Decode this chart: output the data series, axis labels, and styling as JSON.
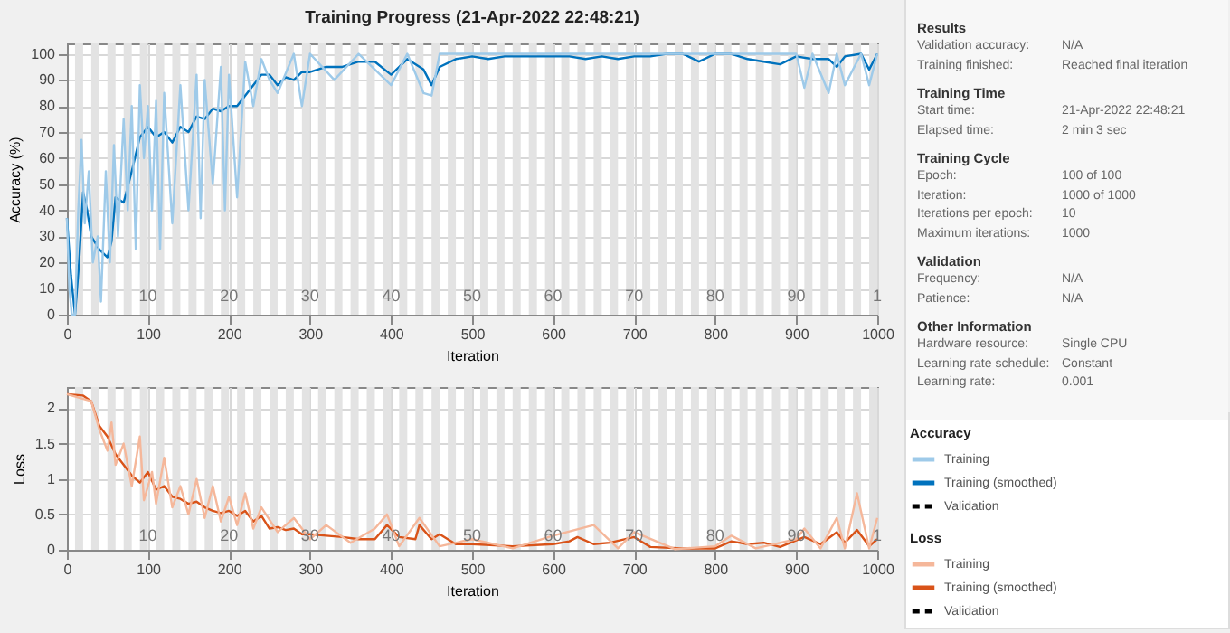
{
  "chart_data": [
    {
      "type": "line",
      "title": "Training Progress (21-Apr-2022 22:48:21)",
      "xlabel": "Iteration",
      "ylabel": "Accuracy (%)",
      "legend_title": "Accuracy",
      "legend": "right",
      "grid": true,
      "xlim": [
        0,
        1000
      ],
      "xticks": [
        0,
        100,
        200,
        300,
        400,
        500,
        600,
        700,
        800,
        900,
        1000
      ],
      "ylim": [
        0,
        104
      ],
      "yticks": [
        0,
        10,
        20,
        30,
        40,
        50,
        60,
        70,
        80,
        90,
        100
      ],
      "series": [
        {
          "name": "Training",
          "color": "#9ecae9",
          "x": [
            0,
            3,
            6,
            10,
            14,
            18,
            22,
            27,
            32,
            38,
            42,
            48,
            53,
            58,
            63,
            70,
            75,
            80,
            85,
            90,
            95,
            100,
            105,
            110,
            115,
            120,
            130,
            140,
            150,
            160,
            165,
            170,
            180,
            190,
            195,
            200,
            210,
            220,
            230,
            240,
            250,
            260,
            280,
            290,
            300,
            330,
            360,
            400,
            420,
            440,
            450,
            460,
            500,
            600,
            700,
            800,
            900,
            910,
            920,
            940,
            950,
            960,
            980,
            990,
            1000
          ],
          "values": [
            37,
            10,
            0,
            0,
            40,
            67,
            35,
            55,
            20,
            30,
            5,
            55,
            20,
            65,
            30,
            75,
            40,
            80,
            25,
            88,
            60,
            80,
            40,
            82,
            25,
            85,
            35,
            88,
            40,
            92,
            37,
            90,
            50,
            95,
            40,
            92,
            45,
            97,
            80,
            98,
            90,
            85,
            100,
            80,
            100,
            90,
            100,
            88,
            100,
            85,
            84,
            100,
            100,
            100,
            100,
            100,
            100,
            87,
            100,
            85,
            100,
            88,
            100,
            88,
            100
          ]
        },
        {
          "name": "Training (smoothed)",
          "color": "#0072bd",
          "x": [
            0,
            5,
            10,
            15,
            20,
            25,
            30,
            40,
            50,
            55,
            60,
            70,
            80,
            90,
            100,
            110,
            120,
            130,
            140,
            150,
            160,
            170,
            180,
            190,
            200,
            210,
            220,
            230,
            240,
            250,
            260,
            270,
            280,
            290,
            300,
            320,
            340,
            360,
            380,
            400,
            420,
            440,
            450,
            460,
            480,
            500,
            520,
            540,
            560,
            580,
            600,
            620,
            640,
            660,
            680,
            700,
            720,
            740,
            760,
            780,
            800,
            820,
            840,
            860,
            880,
            900,
            920,
            940,
            950,
            960,
            980,
            990,
            1000
          ],
          "values": [
            37,
            15,
            0,
            20,
            47,
            40,
            30,
            25,
            22,
            28,
            45,
            43,
            55,
            68,
            72,
            68,
            70,
            66,
            72,
            70,
            76,
            75,
            79,
            78,
            80,
            80,
            84,
            88,
            92,
            92,
            88,
            91,
            90,
            93,
            93,
            95,
            95,
            97,
            97,
            92,
            98,
            94,
            88,
            95,
            98,
            99,
            98,
            99,
            99,
            99,
            99,
            99,
            98,
            99,
            98,
            99,
            99,
            100,
            100,
            97,
            100,
            100,
            98,
            97,
            96,
            99,
            98,
            98,
            95,
            99,
            100,
            94,
            100
          ]
        },
        {
          "name": "Validation",
          "color": "#000000",
          "line_style": "dashed"
        }
      ],
      "bands": [
        {
          "axis": "x",
          "from": 10,
          "to": 20
        },
        {
          "axis": "x",
          "from": 30,
          "to": 40
        },
        {
          "axis": "x",
          "from": 50,
          "to": 60
        },
        {
          "axis": "x",
          "from": 70,
          "to": 80
        },
        {
          "axis": "x",
          "from": 90,
          "to": 100
        },
        {
          "axis": "x",
          "from": 110,
          "to": 120
        },
        {
          "axis": "x",
          "from": 130,
          "to": 140
        },
        {
          "axis": "x",
          "from": 150,
          "to": 160
        },
        {
          "axis": "x",
          "from": 170,
          "to": 180
        },
        {
          "axis": "x",
          "from": 190,
          "to": 200
        },
        {
          "axis": "x",
          "from": 210,
          "to": 220
        },
        {
          "axis": "x",
          "from": 230,
          "to": 240
        },
        {
          "axis": "x",
          "from": 250,
          "to": 260
        },
        {
          "axis": "x",
          "from": 270,
          "to": 280
        },
        {
          "axis": "x",
          "from": 290,
          "to": 300
        },
        {
          "axis": "x",
          "from": 310,
          "to": 320
        },
        {
          "axis": "x",
          "from": 330,
          "to": 340
        },
        {
          "axis": "x",
          "from": 350,
          "to": 360
        },
        {
          "axis": "x",
          "from": 370,
          "to": 380
        },
        {
          "axis": "x",
          "from": 390,
          "to": 400
        },
        {
          "axis": "x",
          "from": 410,
          "to": 420
        },
        {
          "axis": "x",
          "from": 430,
          "to": 440
        },
        {
          "axis": "x",
          "from": 450,
          "to": 460
        },
        {
          "axis": "x",
          "from": 470,
          "to": 480
        },
        {
          "axis": "x",
          "from": 490,
          "to": 500
        },
        {
          "axis": "x",
          "from": 510,
          "to": 520
        },
        {
          "axis": "x",
          "from": 530,
          "to": 540
        },
        {
          "axis": "x",
          "from": 550,
          "to": 560
        },
        {
          "axis": "x",
          "from": 570,
          "to": 580
        },
        {
          "axis": "x",
          "from": 590,
          "to": 600
        },
        {
          "axis": "x",
          "from": 610,
          "to": 620
        },
        {
          "axis": "x",
          "from": 630,
          "to": 640
        },
        {
          "axis": "x",
          "from": 650,
          "to": 660
        },
        {
          "axis": "x",
          "from": 670,
          "to": 680
        },
        {
          "axis": "x",
          "from": 690,
          "to": 700
        },
        {
          "axis": "x",
          "from": 710,
          "to": 720
        },
        {
          "axis": "x",
          "from": 730,
          "to": 740
        },
        {
          "axis": "x",
          "from": 750,
          "to": 760
        },
        {
          "axis": "x",
          "from": 770,
          "to": 780
        },
        {
          "axis": "x",
          "from": 790,
          "to": 800
        },
        {
          "axis": "x",
          "from": 810,
          "to": 820
        },
        {
          "axis": "x",
          "from": 830,
          "to": 840
        },
        {
          "axis": "x",
          "from": 850,
          "to": 860
        },
        {
          "axis": "x",
          "from": 870,
          "to": 880
        },
        {
          "axis": "x",
          "from": 890,
          "to": 900
        },
        {
          "axis": "x",
          "from": 910,
          "to": 920
        },
        {
          "axis": "x",
          "from": 930,
          "to": 940
        },
        {
          "axis": "x",
          "from": 950,
          "to": 960
        },
        {
          "axis": "x",
          "from": 970,
          "to": 980
        },
        {
          "axis": "x",
          "from": 990,
          "to": 1000
        }
      ],
      "annotations": [
        {
          "text": "10",
          "x": 100,
          "y": 6
        },
        {
          "text": "20",
          "x": 200,
          "y": 6
        },
        {
          "text": "30",
          "x": 300,
          "y": 6
        },
        {
          "text": "40",
          "x": 400,
          "y": 6
        },
        {
          "text": "50",
          "x": 500,
          "y": 6
        },
        {
          "text": "60",
          "x": 600,
          "y": 6
        },
        {
          "text": "70",
          "x": 700,
          "y": 6
        },
        {
          "text": "80",
          "x": 800,
          "y": 6
        },
        {
          "text": "90",
          "x": 900,
          "y": 6
        },
        {
          "text": "1",
          "x": 1000,
          "y": 6
        }
      ]
    },
    {
      "type": "line",
      "xlabel": "Iteration",
      "ylabel": "Loss",
      "legend_title": "Loss",
      "legend": "right",
      "grid": true,
      "xlim": [
        0,
        1000
      ],
      "xticks": [
        0,
        100,
        200,
        300,
        400,
        500,
        600,
        700,
        800,
        900,
        1000
      ],
      "ylim": [
        0,
        2.3
      ],
      "yticks": [
        0,
        0.5,
        1,
        1.5,
        2
      ],
      "series": [
        {
          "name": "Training",
          "color": "#f5b79a",
          "x": [
            0,
            30,
            40,
            50,
            55,
            60,
            70,
            80,
            90,
            95,
            105,
            110,
            120,
            130,
            140,
            150,
            160,
            170,
            180,
            190,
            200,
            210,
            220,
            230,
            240,
            260,
            280,
            300,
            320,
            350,
            380,
            395,
            410,
            435,
            460,
            500,
            550,
            600,
            650,
            680,
            700,
            750,
            800,
            820,
            850,
            900,
            910,
            930,
            950,
            960,
            975,
            990,
            1000
          ],
          "values": [
            2.2,
            2.1,
            1.7,
            1.4,
            1.8,
            1.2,
            1.5,
            0.9,
            1.6,
            0.7,
            1.1,
            0.65,
            1.3,
            0.6,
            0.9,
            0.5,
            1.0,
            0.45,
            0.9,
            0.4,
            0.75,
            0.35,
            0.8,
            0.3,
            0.6,
            0.25,
            0.45,
            0.15,
            0.35,
            0.1,
            0.3,
            0.5,
            0.05,
            0.45,
            0.05,
            0.15,
            0.02,
            0.2,
            0.35,
            0.02,
            0.25,
            0.01,
            0.05,
            0.2,
            0.02,
            0.15,
            0.3,
            0.02,
            0.45,
            0.02,
            0.8,
            0.02,
            0.45
          ]
        },
        {
          "name": "Training (smoothed)",
          "color": "#d95319",
          "x": [
            0,
            20,
            30,
            40,
            50,
            60,
            70,
            80,
            90,
            100,
            110,
            120,
            130,
            140,
            150,
            160,
            170,
            180,
            190,
            200,
            210,
            220,
            230,
            240,
            250,
            260,
            270,
            280,
            290,
            300,
            320,
            340,
            360,
            380,
            395,
            410,
            430,
            435,
            450,
            460,
            480,
            500,
            550,
            600,
            620,
            630,
            650,
            670,
            700,
            720,
            760,
            800,
            820,
            840,
            860,
            880,
            910,
            930,
            950,
            960,
            975,
            990,
            1000
          ],
          "values": [
            2.2,
            2.18,
            2.1,
            1.75,
            1.6,
            1.35,
            1.2,
            1.05,
            0.95,
            1.1,
            0.85,
            0.9,
            0.75,
            0.72,
            0.65,
            0.68,
            0.6,
            0.55,
            0.52,
            0.55,
            0.48,
            0.55,
            0.4,
            0.48,
            0.3,
            0.32,
            0.28,
            0.3,
            0.22,
            0.22,
            0.2,
            0.18,
            0.15,
            0.15,
            0.35,
            0.18,
            0.15,
            0.35,
            0.15,
            0.22,
            0.08,
            0.08,
            0.05,
            0.08,
            0.12,
            0.18,
            0.08,
            0.1,
            0.18,
            0.04,
            0.02,
            0.02,
            0.12,
            0.08,
            0.1,
            0.04,
            0.18,
            0.08,
            0.25,
            0.1,
            0.28,
            0.05,
            0.15
          ]
        },
        {
          "name": "Validation",
          "color": "#000000",
          "line_style": "dashed"
        }
      ],
      "bands": [
        {
          "axis": "x",
          "from": 10,
          "to": 20
        },
        {
          "axis": "x",
          "from": 30,
          "to": 40
        },
        {
          "axis": "x",
          "from": 50,
          "to": 60
        },
        {
          "axis": "x",
          "from": 70,
          "to": 80
        },
        {
          "axis": "x",
          "from": 90,
          "to": 100
        },
        {
          "axis": "x",
          "from": 110,
          "to": 120
        },
        {
          "axis": "x",
          "from": 130,
          "to": 140
        },
        {
          "axis": "x",
          "from": 150,
          "to": 160
        },
        {
          "axis": "x",
          "from": 170,
          "to": 180
        },
        {
          "axis": "x",
          "from": 190,
          "to": 200
        },
        {
          "axis": "x",
          "from": 210,
          "to": 220
        },
        {
          "axis": "x",
          "from": 230,
          "to": 240
        },
        {
          "axis": "x",
          "from": 250,
          "to": 260
        },
        {
          "axis": "x",
          "from": 270,
          "to": 280
        },
        {
          "axis": "x",
          "from": 290,
          "to": 300
        },
        {
          "axis": "x",
          "from": 310,
          "to": 320
        },
        {
          "axis": "x",
          "from": 330,
          "to": 340
        },
        {
          "axis": "x",
          "from": 350,
          "to": 360
        },
        {
          "axis": "x",
          "from": 370,
          "to": 380
        },
        {
          "axis": "x",
          "from": 390,
          "to": 400
        },
        {
          "axis": "x",
          "from": 410,
          "to": 420
        },
        {
          "axis": "x",
          "from": 430,
          "to": 440
        },
        {
          "axis": "x",
          "from": 450,
          "to": 460
        },
        {
          "axis": "x",
          "from": 470,
          "to": 480
        },
        {
          "axis": "x",
          "from": 490,
          "to": 500
        },
        {
          "axis": "x",
          "from": 510,
          "to": 520
        },
        {
          "axis": "x",
          "from": 530,
          "to": 540
        },
        {
          "axis": "x",
          "from": 550,
          "to": 560
        },
        {
          "axis": "x",
          "from": 570,
          "to": 580
        },
        {
          "axis": "x",
          "from": 590,
          "to": 600
        },
        {
          "axis": "x",
          "from": 610,
          "to": 620
        },
        {
          "axis": "x",
          "from": 630,
          "to": 640
        },
        {
          "axis": "x",
          "from": 650,
          "to": 660
        },
        {
          "axis": "x",
          "from": 670,
          "to": 680
        },
        {
          "axis": "x",
          "from": 690,
          "to": 700
        },
        {
          "axis": "x",
          "from": 710,
          "to": 720
        },
        {
          "axis": "x",
          "from": 730,
          "to": 740
        },
        {
          "axis": "x",
          "from": 750,
          "to": 760
        },
        {
          "axis": "x",
          "from": 770,
          "to": 780
        },
        {
          "axis": "x",
          "from": 790,
          "to": 800
        },
        {
          "axis": "x",
          "from": 810,
          "to": 820
        },
        {
          "axis": "x",
          "from": 830,
          "to": 840
        },
        {
          "axis": "x",
          "from": 850,
          "to": 860
        },
        {
          "axis": "x",
          "from": 870,
          "to": 880
        },
        {
          "axis": "x",
          "from": 890,
          "to": 900
        },
        {
          "axis": "x",
          "from": 910,
          "to": 920
        },
        {
          "axis": "x",
          "from": 930,
          "to": 940
        },
        {
          "axis": "x",
          "from": 950,
          "to": 960
        },
        {
          "axis": "x",
          "from": 970,
          "to": 980
        },
        {
          "axis": "x",
          "from": 990,
          "to": 1000
        }
      ],
      "annotations": [
        {
          "text": "10",
          "x": 100,
          "y": 0.15
        },
        {
          "text": "20",
          "x": 200,
          "y": 0.15
        },
        {
          "text": "30",
          "x": 300,
          "y": 0.15
        },
        {
          "text": "40",
          "x": 400,
          "y": 0.15
        },
        {
          "text": "50",
          "x": 500,
          "y": 0.15
        },
        {
          "text": "60",
          "x": 600,
          "y": 0.15
        },
        {
          "text": "70",
          "x": 700,
          "y": 0.15
        },
        {
          "text": "80",
          "x": 800,
          "y": 0.15
        },
        {
          "text": "90",
          "x": 900,
          "y": 0.15
        },
        {
          "text": "1",
          "x": 1000,
          "y": 0.15
        }
      ]
    },
    {
      "type": "other",
      "cell_labels": [
        [
          "Results"
        ],
        [
          "Validation accuracy:",
          "N/A"
        ],
        [
          "Training finished:",
          "Reached final iteration"
        ],
        [
          "Training Time"
        ],
        [
          "Start time:",
          "21-Apr-2022 22:48:21"
        ],
        [
          "Elapsed time:",
          "2 min 3 sec"
        ],
        [
          "Training Cycle"
        ],
        [
          "Epoch:",
          "100 of 100"
        ],
        [
          "Iteration:",
          "1000 of 1000"
        ],
        [
          "Iterations per epoch:",
          "10"
        ],
        [
          "Maximum iterations:",
          "1000"
        ],
        [
          "Validation"
        ],
        [
          "Frequency:",
          "N/A"
        ],
        [
          "Patience:",
          "N/A"
        ],
        [
          "Other Information"
        ],
        [
          "Hardware resource:",
          "Single CPU"
        ],
        [
          "Learning rate schedule:",
          "Constant"
        ],
        [
          "Learning rate:",
          "0.001"
        ]
      ]
    }
  ]
}
